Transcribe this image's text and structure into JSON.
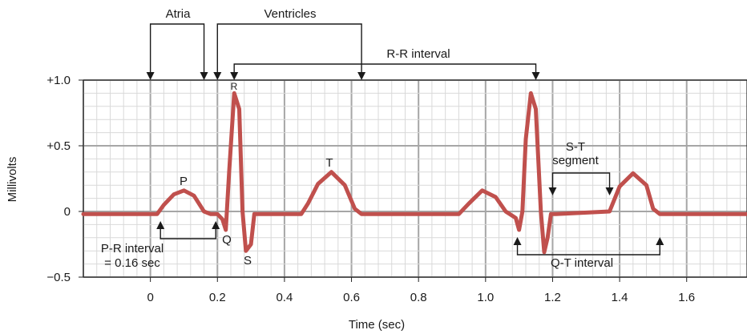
{
  "chart_data": {
    "type": "line",
    "xlabel": "Time (sec)",
    "ylabel": "Millivolts",
    "xlim": [
      -0.2,
      1.78
    ],
    "ylim": [
      -0.5,
      1.0
    ],
    "x_ticks": [
      "0",
      "0.2",
      "0.4",
      "0.6",
      "0.8",
      "1.0",
      "1.2",
      "1.4",
      "1.6"
    ],
    "x_tick_values": [
      0,
      0.2,
      0.4,
      0.6,
      0.8,
      1.0,
      1.2,
      1.4,
      1.6
    ],
    "y_ticks": [
      "+1.0",
      "+0.5",
      "0",
      "−0.5"
    ],
    "y_tick_values": [
      1.0,
      0.5,
      0,
      -0.5
    ],
    "grid": true,
    "line_color": "#c0504d",
    "grid_major_color": "#a6a6a6",
    "grid_minor_color": "#d9d9d9",
    "series": [
      {
        "x": [
          -0.2,
          0.02,
          0.04,
          0.07,
          0.1,
          0.13,
          0.16,
          0.18,
          0.2,
          0.215,
          0.225,
          0.235,
          0.25,
          0.265,
          0.275,
          0.285,
          0.3,
          0.31,
          0.32,
          0.45,
          0.47,
          0.5,
          0.54,
          0.58,
          0.61,
          0.63,
          0.92,
          0.95,
          0.99,
          1.03,
          1.06,
          1.09,
          1.1,
          1.11,
          1.12,
          1.135,
          1.15,
          1.165,
          1.175,
          1.185,
          1.195,
          1.21,
          1.37,
          1.4,
          1.44,
          1.48,
          1.5,
          1.52,
          1.78
        ],
        "y": [
          -0.02,
          -0.02,
          0.05,
          0.13,
          0.16,
          0.12,
          0.0,
          -0.02,
          -0.02,
          -0.06,
          -0.14,
          0.3,
          0.9,
          0.78,
          0.0,
          -0.3,
          -0.25,
          -0.02,
          -0.02,
          -0.02,
          0.06,
          0.21,
          0.3,
          0.2,
          0.02,
          -0.02,
          -0.02,
          0.06,
          0.16,
          0.11,
          0.0,
          -0.05,
          -0.14,
          0.0,
          0.55,
          0.9,
          0.78,
          0.0,
          -0.31,
          -0.2,
          -0.02,
          -0.02,
          0.0,
          0.19,
          0.29,
          0.2,
          0.02,
          -0.02,
          -0.02
        ]
      }
    ],
    "annotations": {
      "atria": "Atria",
      "ventricles": "Ventricles",
      "rr": "R-R interval",
      "st_1": "S-T",
      "st_2": "segment",
      "pr_1": "P-R interval",
      "pr_2": "= 0.16 sec",
      "qt": "Q-T interval",
      "p": "P",
      "q": "Q",
      "r": "R",
      "s": "S",
      "t": "T"
    }
  }
}
